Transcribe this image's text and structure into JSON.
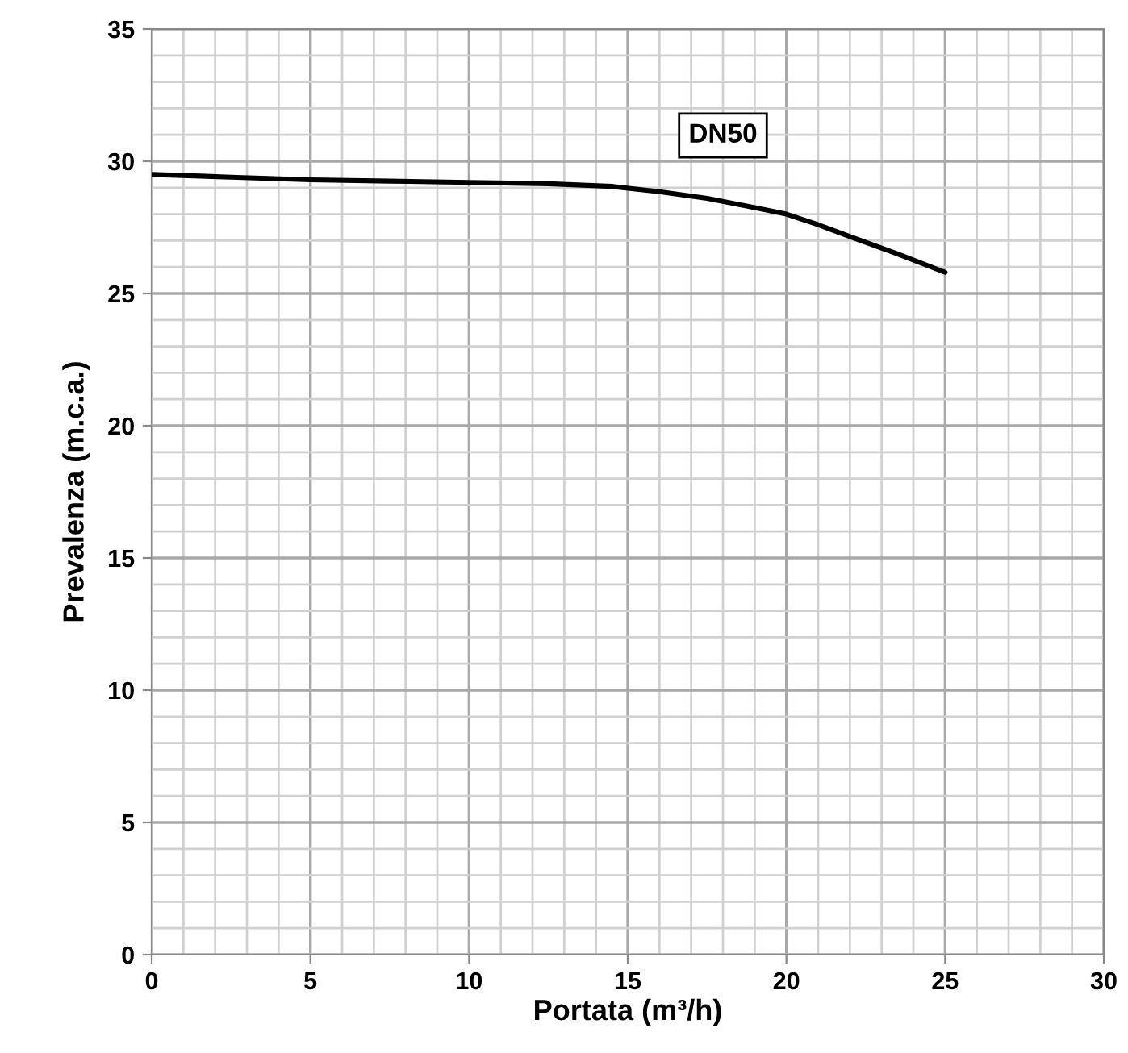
{
  "chart_data": {
    "type": "line",
    "xlabel": "Portata (m³/h)",
    "ylabel": "Prevalenza (m.c.a.)",
    "x": [
      0,
      2.5,
      5,
      7.5,
      10,
      12.5,
      14.5,
      16,
      17.5,
      19,
      20,
      21,
      22,
      23.5,
      25
    ],
    "series": [
      {
        "name": "DN50",
        "color": "#000000",
        "values": [
          29.5,
          29.4,
          29.3,
          29.25,
          29.2,
          29.15,
          29.05,
          28.85,
          28.6,
          28.25,
          28.0,
          27.6,
          27.15,
          26.5,
          25.8
        ]
      }
    ],
    "xlim": [
      0,
      30
    ],
    "ylim": [
      0,
      35
    ],
    "xticks": [
      0,
      5,
      10,
      15,
      20,
      25,
      30
    ],
    "yticks": [
      0,
      5,
      10,
      15,
      20,
      25,
      30,
      35
    ],
    "grid": true,
    "line_style": "solid",
    "marker": "none"
  }
}
